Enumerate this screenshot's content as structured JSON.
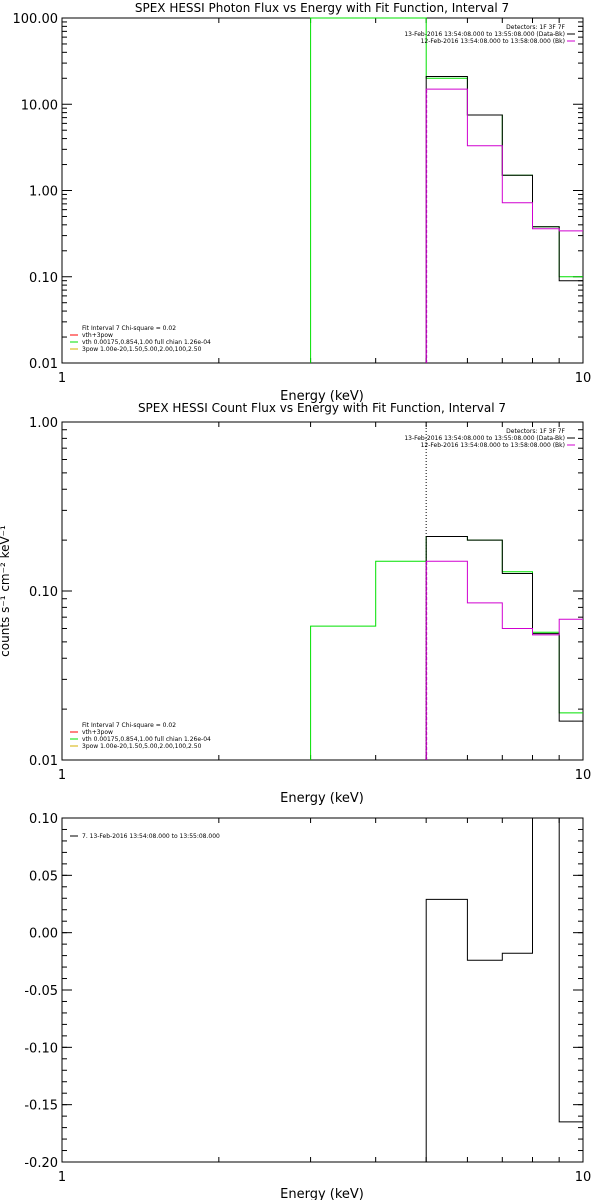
{
  "colors": {
    "black": "#000000",
    "green": "#00e000",
    "magenta": "#d000d0",
    "red": "#ff0000",
    "yellow": "#d4b000"
  },
  "chart_data": [
    {
      "type": "line",
      "title": "SPEX HESSI Photon Flux vs Energy with Fit Function, Interval 7",
      "xlabel": "Energy (keV)",
      "ylabel": "",
      "xscale": "log",
      "yscale": "log",
      "xlim": [
        1,
        10
      ],
      "ylim": [
        0.01,
        100
      ],
      "xticks": [
        "1",
        "10"
      ],
      "yticks": [
        "0.01",
        "0.10",
        "1.00",
        "10.00",
        "100.00"
      ],
      "legend_tr": [
        {
          "text": "Detectors: 1F 3F 7F",
          "color": ""
        },
        {
          "text": "13-Feb-2016 13:54:08.000 to 13:55:08.000 (Data-Bk)",
          "color": "#000000"
        },
        {
          "text": "12-Feb-2016 13:54:08.000 to 13:58:08.000 (Bk)",
          "color": "#d000d0"
        }
      ],
      "legend_bl": [
        {
          "text": "Fit Interval 7   Chi-square = 0.02",
          "color": ""
        },
        {
          "text": "vth+3pow",
          "color": "#ff0000"
        },
        {
          "text": "vth 0.00175,0.854,1.00  full chian 1.26e-04",
          "color": "#00e000"
        },
        {
          "text": "3pow 1.00e-20,1.50,5.00,2.00,100,2.50",
          "color": "#d4b000"
        }
      ],
      "vline": {
        "x": 5.0,
        "color": "#d000d0"
      },
      "series": [
        {
          "edges": [
            3.0,
            4.0,
            5.0,
            6.0,
            7.0,
            8.0,
            9.0,
            10.0
          ],
          "values": [
            100,
            100,
            20.0,
            7.5,
            1.5,
            0.38,
            0.1
          ],
          "color": "#00e000"
        },
        {
          "edges": [
            5.0,
            6.0,
            7.0,
            8.0,
            9.0,
            10.0
          ],
          "values": [
            21.0,
            7.5,
            1.5,
            0.38,
            0.09
          ],
          "color": "#000000"
        },
        {
          "edges": [
            5.0,
            6.0,
            7.0,
            8.0,
            9.0,
            10.0
          ],
          "values": [
            15.0,
            3.3,
            0.72,
            0.36,
            0.34
          ],
          "color": "#d000d0"
        }
      ]
    },
    {
      "type": "line",
      "title": "SPEX HESSI Count Flux vs Energy with Fit Function, Interval 7",
      "xlabel": "Energy (keV)",
      "ylabel": "counts s⁻¹ cm⁻² keV⁻¹",
      "xscale": "log",
      "yscale": "log",
      "xlim": [
        1,
        10
      ],
      "ylim": [
        0.01,
        1.0
      ],
      "xticks": [
        "1",
        "10"
      ],
      "yticks": [
        "0.01",
        "0.10",
        "1.00"
      ],
      "legend_tr": [
        {
          "text": "Detectors: 1F 3F 7F",
          "color": ""
        },
        {
          "text": "13-Feb-2016 13:54:08.000 to 13:55:08.000 (Data-Bk)",
          "color": "#000000"
        },
        {
          "text": "12-Feb-2016 13:54:08.000 to 13:58:08.000 (Bk)",
          "color": "#d000d0"
        }
      ],
      "legend_bl": [
        {
          "text": "Fit Interval 7   Chi-square = 0.02",
          "color": ""
        },
        {
          "text": "vth+3pow",
          "color": "#ff0000"
        },
        {
          "text": "vth 0.00175,0.854,1.00  full chian 1.26e-04",
          "color": "#00e000"
        },
        {
          "text": "3pow 1.00e-20,1.50,5.00,2.00,100,2.50",
          "color": "#d4b000"
        }
      ],
      "vline": {
        "x": 5.0,
        "color": "#d000d0",
        "dotted_to_top": true
      },
      "series": [
        {
          "edges": [
            3.0,
            3.5,
            4.0,
            5.0,
            6.0,
            7.0,
            8.0,
            9.0,
            10.0
          ],
          "values": [
            0.062,
            0.062,
            0.15,
            0.21,
            0.2,
            0.13,
            0.057,
            0.019
          ],
          "color": "#00e000"
        },
        {
          "edges": [
            5.0,
            6.0,
            7.0,
            8.0,
            9.0,
            10.0
          ],
          "values": [
            0.21,
            0.2,
            0.127,
            0.056,
            0.017
          ],
          "color": "#000000"
        },
        {
          "edges": [
            5.0,
            6.0,
            7.0,
            8.0,
            9.0,
            10.0
          ],
          "values": [
            0.15,
            0.085,
            0.06,
            0.055,
            0.068
          ],
          "color": "#d000d0"
        }
      ]
    },
    {
      "type": "line",
      "title": "",
      "xlabel": "Energy (keV)",
      "ylabel": "",
      "xscale": "log",
      "yscale": "linear",
      "xlim": [
        1,
        10
      ],
      "ylim": [
        -0.2,
        0.1
      ],
      "xticks": [
        "1",
        "10"
      ],
      "yticks": [
        "-0.20",
        "-0.15",
        "-0.10",
        "-0.05",
        "0.00",
        "0.05",
        "0.10"
      ],
      "legend_tl": [
        {
          "text": "7. 13-Feb-2016 13:54:08.000 to 13:55:08.000",
          "color": "#000000"
        }
      ],
      "series": [
        {
          "edges": [
            5.0,
            6.0,
            7.0,
            8.0,
            9.0,
            10.0
          ],
          "values": [
            0.029,
            -0.024,
            -0.018,
            0.1,
            -0.165
          ],
          "color": "#000000",
          "start_from_bottom": true
        }
      ]
    }
  ]
}
